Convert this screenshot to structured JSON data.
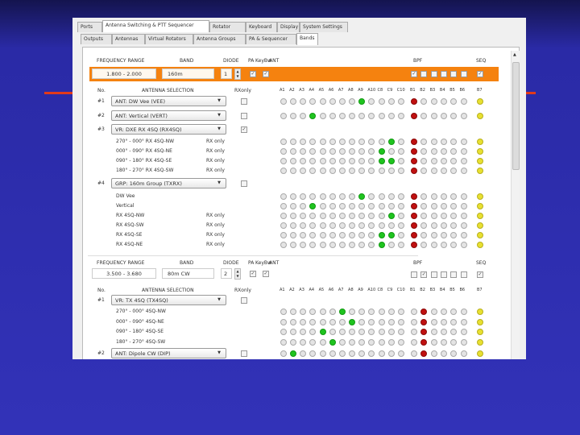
{
  "tabs_main": [
    {
      "label": "Ports"
    },
    {
      "label": "Antenna Switching & PTT Sequencer",
      "selected": true
    },
    {
      "label": "Rotator"
    },
    {
      "label": "Keyboard"
    },
    {
      "label": "Display"
    },
    {
      "label": "System Settings"
    }
  ],
  "tabs_sub": [
    {
      "label": "Outputs"
    },
    {
      "label": "Antennas"
    },
    {
      "label": "Virtual Rotators"
    },
    {
      "label": "Antenna Groups"
    },
    {
      "label": "PA & Sequencer"
    },
    {
      "label": "Bands",
      "selected": true
    }
  ],
  "labels": {
    "freq": "FREQUENCY RANGE",
    "band": "BAND",
    "diode": "DIODE",
    "pa": "PA",
    "keybw": "KeyBw",
    "ant": "ANT",
    "bpf": "BPF",
    "seq": "SEQ",
    "no": "No.",
    "antsel": "ANTENNA SELECTION",
    "rxonly": "RXonly"
  },
  "columns": {
    "ant": [
      "A1",
      "A2",
      "A3",
      "A4",
      "A5",
      "A6",
      "A7",
      "A8",
      "A9",
      "A10",
      "C8",
      "C9",
      "C10"
    ],
    "bpf": [
      "B1",
      "B2",
      "B3",
      "B4",
      "B5",
      "B6"
    ],
    "seq": "B7"
  },
  "colors": {
    "accent": "#f5820f",
    "on": "#1fc41f",
    "bpf_on": "#c01010",
    "seq": "#e8e030"
  },
  "bands": [
    {
      "freq": "1.800 - 2.000",
      "band": "160m",
      "diode": "1",
      "pa": true,
      "keybw": true,
      "bpf": [
        true,
        false,
        false,
        false,
        false,
        false
      ],
      "seq": true,
      "highlighted": true,
      "rows": [
        {
          "no": "#1",
          "sel": "ANT: DW Vee (VEE)",
          "rxonly": false,
          "ant_on": [
            8
          ],
          "bpf_on": 0
        },
        {
          "no": "#2",
          "sel": "ANT: Vertical (VERT)",
          "rxonly": false,
          "ant_on": [
            3
          ],
          "bpf_on": 0
        },
        {
          "no": "#3",
          "sel": "VR: DXE RX 4SQ (RX4SQ)",
          "rxonly": true,
          "subs": [
            {
              "label": "270° - 000° RX 4SQ-NW",
              "rx": "RX only",
              "ant_on": [
                11
              ],
              "bpf_on": 0
            },
            {
              "label": "000° - 090° RX 4SQ-NE",
              "rx": "RX only",
              "ant_on": [
                10
              ],
              "bpf_on": 0
            },
            {
              "label": "090° - 180° RX 4SQ-SE",
              "rx": "RX only",
              "ant_on": [
                10,
                11
              ],
              "bpf_on": 0
            },
            {
              "label": "180° - 270° RX 4SQ-SW",
              "rx": "RX only",
              "ant_on": [],
              "bpf_on": 0
            }
          ]
        },
        {
          "no": "#4",
          "sel": "GRP: 160m Group (TXRX)",
          "rxonly": false,
          "subs": [
            {
              "label": "DW Vee",
              "rx": "",
              "ant_on": [
                8
              ],
              "bpf_on": 0
            },
            {
              "label": "Vertical",
              "rx": "",
              "ant_on": [
                3
              ],
              "bpf_on": 0
            },
            {
              "label": "RX 4SQ-NW",
              "rx": "RX only",
              "ant_on": [
                11
              ],
              "bpf_on": 0
            },
            {
              "label": "RX 4SQ-SW",
              "rx": "RX only",
              "ant_on": [],
              "bpf_on": 0
            },
            {
              "label": "RX 4SQ-SE",
              "rx": "RX only",
              "ant_on": [
                10,
                11
              ],
              "bpf_on": 0
            },
            {
              "label": "RX 4SQ-NE",
              "rx": "RX only",
              "ant_on": [
                10
              ],
              "bpf_on": 0
            }
          ]
        }
      ]
    },
    {
      "freq": "3.500 - 3.680",
      "band": "80m CW",
      "diode": "2",
      "pa": true,
      "keybw": true,
      "bpf": [
        false,
        true,
        false,
        false,
        false,
        false
      ],
      "seq": true,
      "highlighted": false,
      "rows": [
        {
          "no": "#1",
          "sel": "VR: TX 4SQ (TX4SQ)",
          "rxonly": false,
          "subs": [
            {
              "label": "270° - 000° 4SQ-NW",
              "rx": "",
              "ant_on": [
                6
              ],
              "bpf_on": 1
            },
            {
              "label": "000° - 090° 4SQ-NE",
              "rx": "",
              "ant_on": [
                7
              ],
              "bpf_on": 1
            },
            {
              "label": "090° - 180° 4SQ-SE",
              "rx": "",
              "ant_on": [
                4
              ],
              "bpf_on": 1
            },
            {
              "label": "180° - 270° 4SQ-SW",
              "rx": "",
              "ant_on": [
                5
              ],
              "bpf_on": 1
            }
          ]
        },
        {
          "no": "#2",
          "sel": "ANT: Dipole CW (DIP)",
          "rxonly": false,
          "ant_on": [
            1
          ],
          "bpf_on": 1
        }
      ]
    }
  ]
}
